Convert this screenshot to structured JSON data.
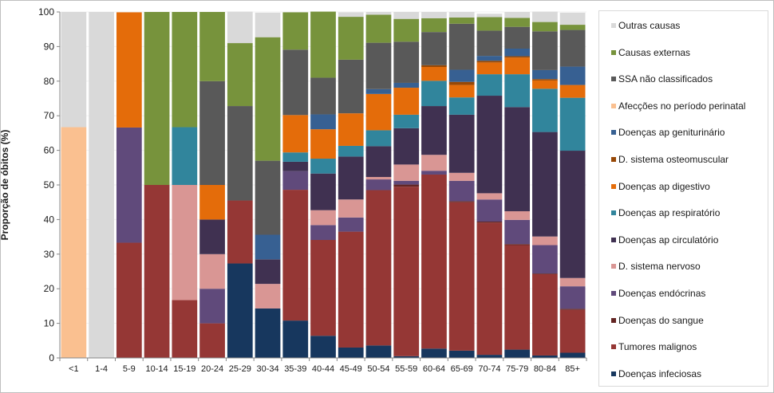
{
  "chart_data": {
    "type": "bar",
    "stacked": true,
    "title": "",
    "xlabel": "",
    "ylabel": "Proporção de óbitos (%)",
    "ylim": [
      0,
      100
    ],
    "yticks": [
      0,
      10,
      20,
      30,
      40,
      50,
      60,
      70,
      80,
      90,
      100
    ],
    "grid": true,
    "legend_position": "right",
    "categories": [
      "<1",
      "1-4",
      "5-9",
      "10-14",
      "15-19",
      "20-24",
      "25-29",
      "30-34",
      "35-39",
      "40-44",
      "45-49",
      "50-54",
      "55-59",
      "60-64",
      "65-69",
      "70-74",
      "75-79",
      "80-84",
      "85+"
    ],
    "series": [
      {
        "name": "Doenças infeciosas",
        "color": "#17375e",
        "values": [
          0,
          0,
          0,
          0,
          0,
          0,
          27.3,
          14.3,
          10.8,
          6.4,
          3.0,
          3.6,
          0.5,
          2.7,
          2.1,
          0.9,
          2.4,
          0.7,
          1.5
        ]
      },
      {
        "name": "Tumores malignos",
        "color": "#953735",
        "values": [
          0,
          0,
          33.3,
          50,
          16.7,
          10,
          18.2,
          0,
          37.8,
          27.7,
          33.5,
          44.9,
          49.0,
          50.3,
          42.9,
          38.2,
          30.2,
          23.5,
          12.4
        ]
      },
      {
        "name": "Doenças do sangue",
        "color": "#632523",
        "values": [
          0,
          0,
          0,
          0,
          0,
          0,
          0,
          0,
          0,
          0,
          0,
          0,
          0.6,
          0,
          0.3,
          0.3,
          0.3,
          0.2,
          0.3
        ]
      },
      {
        "name": "Doenças endócrinas",
        "color": "#604a7b",
        "values": [
          0,
          0,
          33.3,
          0,
          0,
          10,
          0,
          0,
          5.4,
          4.3,
          4.1,
          3.1,
          1.1,
          1.1,
          5.9,
          6.4,
          7.0,
          8.2,
          6.5
        ]
      },
      {
        "name": "D. sistema nervoso",
        "color": "#d99694",
        "values": [
          0,
          0,
          0,
          0,
          33.3,
          10,
          0,
          7.1,
          0,
          4.3,
          5.2,
          0.7,
          4.7,
          4.6,
          2.3,
          1.8,
          2.5,
          2.5,
          2.4
        ]
      },
      {
        "name": "Doenças ap circulatório",
        "color": "#403151",
        "values": [
          0,
          0,
          0,
          0,
          0,
          10,
          0,
          7.1,
          2.7,
          10.6,
          12.4,
          8.9,
          10.5,
          14.1,
          16.8,
          28.2,
          30.1,
          30.2,
          36.8
        ]
      },
      {
        "name": "Doenças ap respiratório",
        "color": "#31859c",
        "values": [
          0,
          0,
          0,
          0,
          16.7,
          0,
          0,
          0,
          2.7,
          4.3,
          3.1,
          4.6,
          3.9,
          7.3,
          5.0,
          6.2,
          9.5,
          12.5,
          15.3
        ]
      },
      {
        "name": "Doenças ap digestivo",
        "color": "#e46c0a",
        "values": [
          0,
          0,
          33.3,
          0,
          0,
          10,
          0,
          0,
          10.8,
          8.5,
          9.4,
          10.5,
          7.8,
          4.0,
          3.6,
          3.4,
          4.8,
          2.4,
          3.7
        ]
      },
      {
        "name": "D. sistema osteomuscular",
        "color": "#974806",
        "values": [
          0,
          0,
          0,
          0,
          0,
          0,
          0,
          0,
          0,
          0,
          0,
          0,
          0,
          0.5,
          0.9,
          0.5,
          0.4,
          0.4,
          0
        ]
      },
      {
        "name": "Doenças ap geniturinário",
        "color": "#376092",
        "values": [
          0,
          0,
          0,
          0,
          0,
          0,
          0,
          7.1,
          0,
          4.3,
          0,
          1.4,
          1.4,
          0,
          3.5,
          1.4,
          2.2,
          2.6,
          5.3
        ]
      },
      {
        "name": "Afecções no período perinatal",
        "color": "#fac090",
        "values": [
          66.7,
          0,
          0,
          0,
          0,
          0,
          0,
          0,
          0,
          0,
          0,
          0,
          0,
          0,
          0,
          0,
          0,
          0,
          0
        ]
      },
      {
        "name": "SSA não classificados",
        "color": "#595959",
        "values": [
          0,
          0,
          0,
          0,
          0,
          30,
          27.3,
          21.4,
          18.9,
          10.6,
          15.5,
          13.4,
          11.9,
          9.6,
          13.3,
          7.3,
          6.3,
          11.2,
          10.6
        ]
      },
      {
        "name": "Causas externas",
        "color": "#77933c",
        "values": [
          0,
          0,
          0,
          50,
          33.3,
          20,
          18.2,
          35.7,
          10.8,
          19.1,
          12.4,
          8.1,
          6.6,
          4.0,
          1.8,
          3.9,
          2.6,
          2.7,
          1.5
        ]
      },
      {
        "name": "Outras causas",
        "color": "#d9d9d9",
        "values": [
          33.3,
          100,
          0,
          0,
          0,
          0,
          9.1,
          7.1,
          0,
          0,
          1.3,
          0.8,
          2.0,
          1.8,
          1.6,
          1.0,
          1.7,
          3.0,
          3.5
        ]
      }
    ],
    "legend_order": [
      "Outras causas",
      "Causas externas",
      "SSA não classificados",
      "Afecções no período perinatal",
      "Doenças ap geniturinário",
      "D. sistema osteomuscular",
      "Doenças ap digestivo",
      "Doenças ap respiratório",
      "Doenças ap circulatório",
      "D. sistema nervoso",
      "Doenças endócrinas",
      "Doenças do sangue",
      "Tumores malignos",
      "Doenças infeciosas"
    ]
  }
}
